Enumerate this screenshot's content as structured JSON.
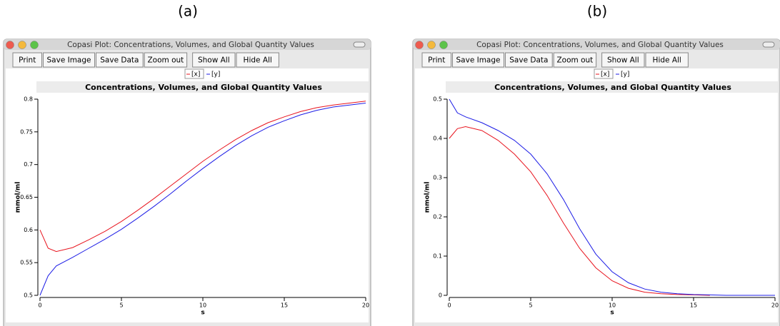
{
  "panels": [
    {
      "label": "(a)",
      "window_title": "Copasi Plot: Concentrations, Volumes, and Global Quantity Values",
      "buttons": [
        "Print",
        "Save Image",
        "Save Data",
        "Zoom out",
        "Show All",
        "Hide All"
      ]
    },
    {
      "label": "(b)",
      "window_title": "Copasi Plot: Concentrations, Volumes, and Global Quantity Values",
      "buttons": [
        "Print",
        "Save Image",
        "Save Data",
        "Zoom out",
        "Show All",
        "Hide All"
      ]
    }
  ],
  "chart_data": [
    {
      "type": "line",
      "title": "Concentrations, Volumes, and Global Quantity Values",
      "x_label": "s",
      "y_label": "mmol/ml",
      "x": [
        0,
        0.5,
        1,
        2,
        3,
        4,
        5,
        6,
        7,
        8,
        9,
        10,
        11,
        12,
        13,
        14,
        15,
        16,
        17,
        18,
        19,
        20
      ],
      "series": [
        {
          "name": "[x]",
          "color": "#e8141e",
          "values": [
            0.6,
            0.572,
            0.567,
            0.573,
            0.585,
            0.598,
            0.613,
            0.63,
            0.648,
            0.667,
            0.686,
            0.705,
            0.722,
            0.738,
            0.752,
            0.764,
            0.773,
            0.781,
            0.787,
            0.791,
            0.794,
            0.797
          ]
        },
        {
          "name": "[y]",
          "color": "#1c1ce6",
          "values": [
            0.5,
            0.53,
            0.545,
            0.558,
            0.572,
            0.586,
            0.601,
            0.618,
            0.636,
            0.655,
            0.675,
            0.694,
            0.712,
            0.729,
            0.744,
            0.757,
            0.767,
            0.776,
            0.783,
            0.788,
            0.791,
            0.794
          ]
        }
      ],
      "xlim": [
        0,
        20
      ],
      "xticks": [
        0,
        5,
        10,
        15,
        20
      ],
      "ylim": [
        0.5,
        0.8
      ],
      "yticks": [
        0.5,
        0.55,
        0.6,
        0.65,
        0.7,
        0.75,
        0.8
      ]
    },
    {
      "type": "line",
      "title": "Concentrations, Volumes, and Global Quantity Values",
      "x_label": "s",
      "y_label": "mmol/ml",
      "x": [
        0,
        0.5,
        1,
        2,
        3,
        4,
        5,
        6,
        7,
        8,
        9,
        10,
        11,
        12,
        13,
        14,
        15,
        16,
        17,
        18,
        19,
        20
      ],
      "series": [
        {
          "name": "[x]",
          "color": "#e8141e",
          "values": [
            0.4,
            0.425,
            0.43,
            0.42,
            0.395,
            0.36,
            0.315,
            0.255,
            0.185,
            0.12,
            0.07,
            0.037,
            0.018,
            0.008,
            0.004,
            0.002,
            0.001,
            0,
            null,
            null,
            null,
            null
          ]
        },
        {
          "name": "[y]",
          "color": "#1c1ce6",
          "values": [
            0.5,
            0.465,
            0.455,
            0.44,
            0.42,
            0.395,
            0.36,
            0.31,
            0.245,
            0.17,
            0.105,
            0.06,
            0.032,
            0.016,
            0.008,
            0.004,
            0.002,
            0.001,
            0,
            0,
            0,
            0
          ]
        }
      ],
      "xlim": [
        0,
        20
      ],
      "xticks": [
        0,
        5,
        10,
        15,
        20
      ],
      "ylim": [
        0,
        0.5
      ],
      "yticks": [
        0,
        0.1,
        0.2,
        0.3,
        0.4,
        0.5
      ]
    }
  ]
}
